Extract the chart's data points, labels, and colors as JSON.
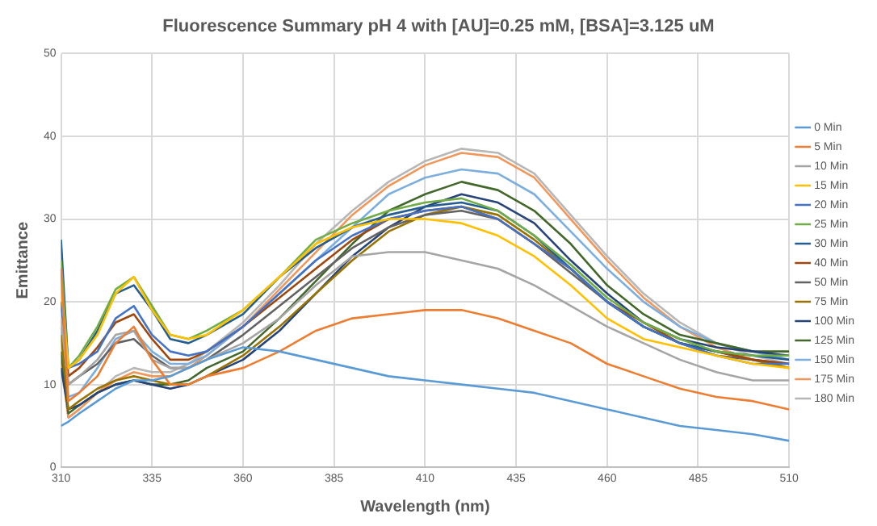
{
  "chart_data": {
    "type": "line",
    "title": "Fluorescence Summary pH 4 with [AU]=0.25 mM, [BSA]=3.125 uM",
    "xlabel": "Wavelength (nm)",
    "ylabel": "Emittance",
    "x": [
      310,
      312,
      315,
      320,
      325,
      330,
      335,
      340,
      345,
      350,
      360,
      370,
      380,
      390,
      400,
      410,
      420,
      430,
      440,
      450,
      460,
      470,
      480,
      490,
      500,
      510
    ],
    "xlim": [
      310,
      510
    ],
    "xticks": [
      310,
      335,
      360,
      385,
      410,
      435,
      460,
      485,
      510
    ],
    "ylim": [
      0,
      50
    ],
    "yticks": [
      0,
      10,
      20,
      30,
      40,
      50
    ],
    "grid": true,
    "legend": "right",
    "marker": "none",
    "line_style": "solid",
    "series": [
      {
        "name": "0 Min",
        "color": "#5b9bd5",
        "values": [
          5,
          5.5,
          6.5,
          8,
          9.5,
          10.5,
          10.5,
          11,
          12,
          13,
          14.5,
          14,
          13,
          12,
          11,
          10.5,
          10,
          9.5,
          9,
          8,
          7,
          6,
          5,
          4.5,
          4,
          3.2
        ]
      },
      {
        "name": "5 Min",
        "color": "#ed7d31",
        "values": [
          24,
          8,
          9,
          11,
          15,
          17,
          13,
          10,
          10,
          11,
          12,
          14,
          16.5,
          18,
          18.5,
          19,
          19,
          18,
          16.5,
          15,
          12.5,
          11,
          9.5,
          8.5,
          8,
          7
        ]
      },
      {
        "name": "10 Min",
        "color": "#a5a5a5",
        "values": [
          18,
          10,
          11,
          13,
          16,
          16.5,
          13,
          12,
          12,
          13,
          15,
          18,
          22,
          25.5,
          26,
          26,
          25,
          24,
          22,
          19.5,
          17,
          15,
          13,
          11.5,
          10.5,
          10.5
        ]
      },
      {
        "name": "15 Min",
        "color": "#ffc000",
        "values": [
          22,
          12,
          13,
          16,
          21,
          23,
          19,
          16,
          15.5,
          16,
          19,
          23,
          27,
          29,
          30,
          30,
          29.5,
          28,
          25.5,
          22,
          18,
          15.5,
          14.5,
          13.5,
          12.5,
          12
        ]
      },
      {
        "name": "20 Min",
        "color": "#4472c4",
        "values": [
          20,
          12,
          12.5,
          14,
          18,
          19.5,
          16,
          14,
          13.5,
          14,
          17,
          21,
          25,
          28,
          30,
          31,
          31.5,
          30,
          27,
          24,
          20,
          17,
          15,
          13.5,
          12.5,
          12.5
        ]
      },
      {
        "name": "25 Min",
        "color": "#70ad47",
        "values": [
          25,
          12,
          13.5,
          17,
          21.5,
          23,
          19.5,
          16,
          15.5,
          16.5,
          19,
          23,
          27.5,
          29.5,
          31,
          32,
          32.5,
          31,
          28,
          24.5,
          20.5,
          17.5,
          15.5,
          14,
          13.5,
          13.5
        ]
      },
      {
        "name": "30 Min",
        "color": "#255e91",
        "values": [
          27.5,
          12,
          13,
          16.5,
          21,
          22,
          19,
          15.5,
          15,
          16,
          18.5,
          23,
          26.5,
          29,
          30.5,
          31.5,
          32,
          31,
          28,
          24,
          20,
          17,
          15,
          14,
          13.5,
          13
        ]
      },
      {
        "name": "40 Min",
        "color": "#9e480e",
        "values": [
          24,
          11,
          12,
          14.5,
          17.5,
          18.5,
          15.5,
          13,
          13,
          14,
          17,
          20.5,
          24,
          27.5,
          30,
          31,
          31.5,
          30,
          27,
          24,
          20,
          17.5,
          15,
          14,
          13,
          12.5
        ]
      },
      {
        "name": "50 Min",
        "color": "#636363",
        "values": [
          20,
          10,
          11,
          12.5,
          15,
          15.5,
          13.5,
          12,
          12,
          13,
          16,
          19.5,
          23,
          26.5,
          29,
          30.5,
          31,
          30,
          27,
          23.5,
          20,
          17,
          15,
          13.5,
          13,
          12.5
        ]
      },
      {
        "name": "75 Min",
        "color": "#997300",
        "values": [
          16,
          7,
          8,
          9.5,
          10.5,
          11,
          10.5,
          10,
          10,
          11,
          13.5,
          17,
          21,
          25,
          28.5,
          30.5,
          31.5,
          30.5,
          27.5,
          24,
          20,
          17,
          15,
          14,
          13,
          12
        ]
      },
      {
        "name": "100 Min",
        "color": "#264478",
        "values": [
          12,
          7,
          7.5,
          9,
          10,
          10.5,
          10,
          9.5,
          10,
          11,
          13,
          16.5,
          21,
          25.5,
          29,
          31.5,
          33,
          32,
          29.5,
          25,
          21,
          17.5,
          15.5,
          14.5,
          14,
          13.5
        ]
      },
      {
        "name": "125 Min",
        "color": "#43682b",
        "values": [
          14,
          6.5,
          7.5,
          9,
          10,
          10.5,
          10,
          10,
          10.5,
          12,
          14,
          18,
          22.5,
          27,
          31,
          33,
          34.5,
          33.5,
          31,
          27,
          22,
          18.5,
          16,
          15,
          14,
          14
        ]
      },
      {
        "name": "150 Min",
        "color": "#7cafdd",
        "values": [
          17,
          8.5,
          9,
          12,
          15.5,
          16.5,
          14,
          12.5,
          12.5,
          13.5,
          17,
          21,
          25,
          29,
          33,
          35,
          36,
          35.5,
          33,
          28.5,
          24,
          20,
          17,
          15,
          14,
          13
        ]
      },
      {
        "name": "175 Min",
        "color": "#f1975a",
        "values": [
          13,
          6,
          7,
          9,
          10.5,
          11.5,
          11,
          11,
          12,
          13.5,
          17,
          21.5,
          26,
          30.5,
          34,
          36.5,
          38,
          37.5,
          35,
          30,
          25,
          20.5,
          17,
          14.5,
          13,
          12
        ]
      },
      {
        "name": "180 Min",
        "color": "#b7b7b7",
        "values": [
          13,
          6,
          7,
          9,
          11,
          12,
          11.5,
          11.5,
          12.5,
          14,
          17.5,
          22,
          27,
          31,
          34.5,
          37,
          38.5,
          38,
          35.5,
          30.5,
          25.5,
          21,
          17.5,
          15,
          13.5,
          12.5
        ]
      }
    ]
  }
}
